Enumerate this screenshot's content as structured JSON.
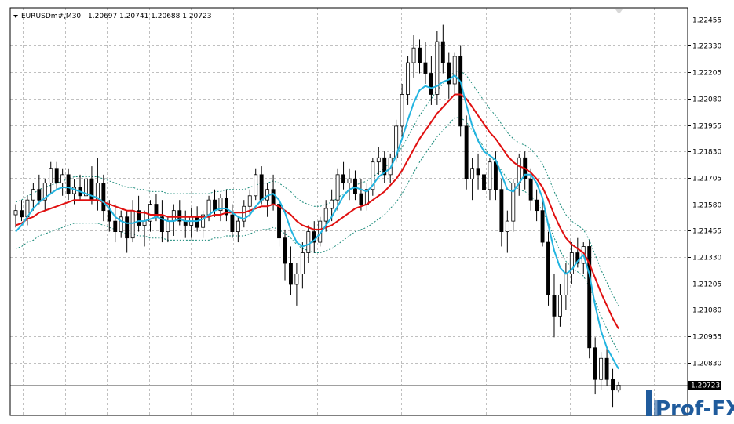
{
  "header": {
    "symbol": "EURUSDm#,M30",
    "ohlc": "1.20697 1.20741 1.20688 1.20723"
  },
  "logo": {
    "text": "Prof-FX"
  },
  "colors": {
    "bull_candle": "#ffffff",
    "bear_candle": "#000000",
    "candle_outline": "#000000",
    "fast_ma": "#22b4e0",
    "slow_ma": "#e01010",
    "envelope": "#1a8a7a",
    "grid": "#c0c0c0",
    "logo": "#1f5b9c"
  },
  "chart_data": {
    "type": "candlestick",
    "title": "",
    "xlabel": "",
    "ylabel": "",
    "ylim": [
      1.2058,
      1.2251
    ],
    "yticks": [
      "1.22455",
      "1.22330",
      "1.22205",
      "1.22080",
      "1.21955",
      "1.21830",
      "1.21705",
      "1.21580",
      "1.21455",
      "1.21330",
      "1.21205",
      "1.21080",
      "1.20955",
      "1.20830"
    ],
    "ytick_values": [
      1.22455,
      1.2233,
      1.22205,
      1.2208,
      1.21955,
      1.2183,
      1.21705,
      1.2158,
      1.21455,
      1.2133,
      1.21205,
      1.2108,
      1.20955,
      1.2083
    ],
    "current_price": "1.20723",
    "current_price_value": 1.20723,
    "grid": true,
    "candles": [
      [
        1.2153,
        1.2158,
        1.2147,
        1.2155
      ],
      [
        1.2155,
        1.216,
        1.215,
        1.2152
      ],
      [
        1.2152,
        1.2162,
        1.2148,
        1.216
      ],
      [
        1.216,
        1.2168,
        1.2155,
        1.2165
      ],
      [
        1.2165,
        1.2172,
        1.2158,
        1.216
      ],
      [
        1.216,
        1.217,
        1.2155,
        1.2168
      ],
      [
        1.2168,
        1.2178,
        1.2163,
        1.2175
      ],
      [
        1.2175,
        1.2178,
        1.2165,
        1.2168
      ],
      [
        1.2168,
        1.2175,
        1.2162,
        1.2172
      ],
      [
        1.2172,
        1.2175,
        1.216,
        1.2163
      ],
      [
        1.2163,
        1.217,
        1.2158,
        1.2166
      ],
      [
        1.2166,
        1.2172,
        1.216,
        1.2162
      ],
      [
        1.2162,
        1.2173,
        1.216,
        1.217
      ],
      [
        1.217,
        1.2176,
        1.2158,
        1.216
      ],
      [
        1.216,
        1.218,
        1.2155,
        1.2168
      ],
      [
        1.2168,
        1.2172,
        1.215,
        1.2155
      ],
      [
        1.2155,
        1.216,
        1.2145,
        1.215
      ],
      [
        1.215,
        1.2158,
        1.214,
        1.2145
      ],
      [
        1.2145,
        1.2155,
        1.2142,
        1.2152
      ],
      [
        1.2152,
        1.2155,
        1.2135,
        1.2142
      ],
      [
        1.2142,
        1.216,
        1.214,
        1.2155
      ],
      [
        1.2155,
        1.2162,
        1.2145,
        1.2148
      ],
      [
        1.2148,
        1.2155,
        1.2138,
        1.215
      ],
      [
        1.215,
        1.216,
        1.2145,
        1.2158
      ],
      [
        1.2158,
        1.2163,
        1.215,
        1.2152
      ],
      [
        1.2152,
        1.216,
        1.214,
        1.2145
      ],
      [
        1.2145,
        1.2152,
        1.214,
        1.215
      ],
      [
        1.215,
        1.2158,
        1.2143,
        1.2155
      ],
      [
        1.2155,
        1.216,
        1.2148,
        1.215
      ],
      [
        1.215,
        1.2155,
        1.2142,
        1.2148
      ],
      [
        1.2148,
        1.2156,
        1.2142,
        1.2152
      ],
      [
        1.2152,
        1.2157,
        1.2145,
        1.2147
      ],
      [
        1.2147,
        1.2155,
        1.2142,
        1.2153
      ],
      [
        1.2153,
        1.2162,
        1.215,
        1.216
      ],
      [
        1.216,
        1.2165,
        1.2152,
        1.2155
      ],
      [
        1.2155,
        1.2163,
        1.215,
        1.2161
      ],
      [
        1.2161,
        1.2165,
        1.215,
        1.2153
      ],
      [
        1.2153,
        1.2158,
        1.2142,
        1.2145
      ],
      [
        1.2145,
        1.2152,
        1.214,
        1.215
      ],
      [
        1.215,
        1.216,
        1.2147,
        1.2157
      ],
      [
        1.2157,
        1.2165,
        1.2152,
        1.2162
      ],
      [
        1.2162,
        1.2175,
        1.216,
        1.2172
      ],
      [
        1.2172,
        1.2176,
        1.2158,
        1.216
      ],
      [
        1.216,
        1.2168,
        1.2152,
        1.2165
      ],
      [
        1.2165,
        1.2172,
        1.2155,
        1.2158
      ],
      [
        1.2158,
        1.216,
        1.2138,
        1.2142
      ],
      [
        1.2142,
        1.2146,
        1.2122,
        1.213
      ],
      [
        1.213,
        1.2138,
        1.2115,
        1.212
      ],
      [
        1.212,
        1.213,
        1.211,
        1.2125
      ],
      [
        1.2125,
        1.214,
        1.2118,
        1.2135
      ],
      [
        1.2135,
        1.2148,
        1.213,
        1.2145
      ],
      [
        1.2145,
        1.215,
        1.2135,
        1.214
      ],
      [
        1.214,
        1.2152,
        1.2138,
        1.215
      ],
      [
        1.215,
        1.216,
        1.2145,
        1.2156
      ],
      [
        1.2156,
        1.2165,
        1.215,
        1.216
      ],
      [
        1.216,
        1.2175,
        1.2155,
        1.2172
      ],
      [
        1.2172,
        1.2178,
        1.2165,
        1.2168
      ],
      [
        1.2168,
        1.2175,
        1.216,
        1.217
      ],
      [
        1.217,
        1.2174,
        1.216,
        1.2163
      ],
      [
        1.2163,
        1.217,
        1.2155,
        1.2158
      ],
      [
        1.2158,
        1.2168,
        1.2155,
        1.2165
      ],
      [
        1.2165,
        1.218,
        1.2162,
        1.2178
      ],
      [
        1.2178,
        1.2185,
        1.2172,
        1.218
      ],
      [
        1.218,
        1.2183,
        1.2168,
        1.2172
      ],
      [
        1.2172,
        1.2182,
        1.2168,
        1.218
      ],
      [
        1.218,
        1.2198,
        1.2178,
        1.2195
      ],
      [
        1.2195,
        1.2215,
        1.219,
        1.221
      ],
      [
        1.221,
        1.2228,
        1.2205,
        1.2225
      ],
      [
        1.2225,
        1.2238,
        1.2218,
        1.2232
      ],
      [
        1.2232,
        1.2236,
        1.222,
        1.2225
      ],
      [
        1.2225,
        1.2235,
        1.2215,
        1.222
      ],
      [
        1.222,
        1.2228,
        1.2205,
        1.221
      ],
      [
        1.221,
        1.224,
        1.2205,
        1.2235
      ],
      [
        1.2235,
        1.2243,
        1.222,
        1.2225
      ],
      [
        1.2225,
        1.223,
        1.2208,
        1.2215
      ],
      [
        1.2215,
        1.223,
        1.221,
        1.2228
      ],
      [
        1.2228,
        1.2233,
        1.219,
        1.2195
      ],
      [
        1.2195,
        1.22,
        1.2165,
        1.217
      ],
      [
        1.217,
        1.218,
        1.216,
        1.2175
      ],
      [
        1.2175,
        1.2182,
        1.2165,
        1.2172
      ],
      [
        1.2172,
        1.218,
        1.216,
        1.2165
      ],
      [
        1.2165,
        1.218,
        1.216,
        1.2178
      ],
      [
        1.2178,
        1.2183,
        1.216,
        1.2165
      ],
      [
        1.2165,
        1.217,
        1.2138,
        1.2145
      ],
      [
        1.2145,
        1.2155,
        1.2135,
        1.215
      ],
      [
        1.215,
        1.217,
        1.2145,
        1.2168
      ],
      [
        1.2168,
        1.2182,
        1.2162,
        1.218
      ],
      [
        1.218,
        1.2183,
        1.2165,
        1.217
      ],
      [
        1.217,
        1.2175,
        1.2155,
        1.216
      ],
      [
        1.216,
        1.2165,
        1.215,
        1.2155
      ],
      [
        1.2155,
        1.216,
        1.2138,
        1.214
      ],
      [
        1.214,
        1.2145,
        1.211,
        1.2115
      ],
      [
        1.2115,
        1.2125,
        1.2095,
        1.2105
      ],
      [
        1.2105,
        1.212,
        1.21,
        1.2115
      ],
      [
        1.2115,
        1.213,
        1.2108,
        1.2125
      ],
      [
        1.2125,
        1.214,
        1.212,
        1.2135
      ],
      [
        1.2135,
        1.2142,
        1.2128,
        1.213
      ],
      [
        1.213,
        1.214,
        1.2125,
        1.2138
      ],
      [
        1.2138,
        1.2141,
        1.2085,
        1.209
      ],
      [
        1.209,
        1.2095,
        1.2068,
        1.2075
      ],
      [
        1.2075,
        1.2088,
        1.207,
        1.2085
      ],
      [
        1.2085,
        1.209,
        1.2072,
        1.2075
      ],
      [
        1.2075,
        1.208,
        1.2062,
        1.207
      ],
      [
        1.207,
        1.2074,
        1.2069,
        1.20723
      ]
    ],
    "fast_ma": [
      1.2145,
      1.2148,
      1.2152,
      1.2156,
      1.2159,
      1.2161,
      1.2163,
      1.2165,
      1.2166,
      1.2166,
      1.2165,
      1.2164,
      1.2163,
      1.2162,
      1.2161,
      1.2159,
      1.2156,
      1.2152,
      1.215,
      1.2149,
      1.2149,
      1.215,
      1.215,
      1.2151,
      1.2152,
      1.2151,
      1.215,
      1.215,
      1.2151,
      1.215,
      1.215,
      1.215,
      1.2151,
      1.2153,
      1.2155,
      1.2156,
      1.2156,
      1.2154,
      1.2152,
      1.2151,
      1.2153,
      1.2157,
      1.216,
      1.2162,
      1.2163,
      1.216,
      1.2154,
      1.2146,
      1.214,
      1.2138,
      1.2139,
      1.2141,
      1.2144,
      1.2148,
      1.2152,
      1.2157,
      1.2162,
      1.2165,
      1.2166,
      1.2165,
      1.2164,
      1.2167,
      1.2171,
      1.2173,
      1.2175,
      1.2181,
      1.2189,
      1.2198,
      1.2206,
      1.2212,
      1.2214,
      1.2213,
      1.2214,
      1.2216,
      1.2217,
      1.2219,
      1.2216,
      1.2205,
      1.2195,
      1.2188,
      1.2183,
      1.2181,
      1.2179,
      1.2172,
      1.2165,
      1.2164,
      1.2168,
      1.2172,
      1.2172,
      1.2168,
      1.2161,
      1.2148,
      1.2136,
      1.2128,
      1.2125,
      1.2127,
      1.2131,
      1.2134,
      1.2125,
      1.211,
      1.2098,
      1.209,
      1.2085,
      1.208
    ],
    "slow_ma": [
      1.2148,
      1.2149,
      1.2151,
      1.2152,
      1.2154,
      1.2155,
      1.2156,
      1.2157,
      1.2158,
      1.2159,
      1.216,
      1.216,
      1.216,
      1.216,
      1.216,
      1.2159,
      1.2158,
      1.2157,
      1.2156,
      1.2155,
      1.2155,
      1.2154,
      1.2154,
      1.2153,
      1.2153,
      1.2153,
      1.2152,
      1.2152,
      1.2152,
      1.2152,
      1.2152,
      1.2152,
      1.2152,
      1.2152,
      1.2153,
      1.2153,
      1.2154,
      1.2154,
      1.2154,
      1.2154,
      1.2155,
      1.2156,
      1.2157,
      1.2157,
      1.2158,
      1.2157,
      1.2155,
      1.2153,
      1.215,
      1.2148,
      1.2147,
      1.2146,
      1.2146,
      1.2147,
      1.2148,
      1.215,
      1.2152,
      1.2154,
      1.2156,
      1.2157,
      1.2158,
      1.216,
      1.2162,
      1.2164,
      1.2167,
      1.217,
      1.2174,
      1.2179,
      1.2184,
      1.2189,
      1.2193,
      1.2197,
      1.2201,
      1.2204,
      1.2207,
      1.221,
      1.221,
      1.2208,
      1.2204,
      1.22,
      1.2196,
      1.2192,
      1.2189,
      1.2185,
      1.2181,
      1.2178,
      1.2176,
      1.2175,
      1.2173,
      1.217,
      1.2166,
      1.216,
      1.2153,
      1.2147,
      1.2142,
      1.2139,
      1.2137,
      1.2135,
      1.213,
      1.2123,
      1.2116,
      1.211,
      1.2104,
      1.2099
    ]
  }
}
